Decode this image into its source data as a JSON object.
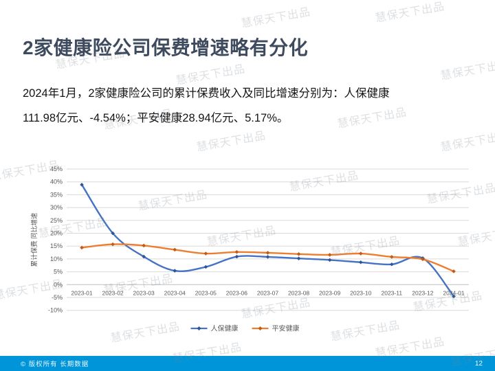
{
  "slide": {
    "title": "2家健康险公司保费增速略有分化",
    "body_line1": "2024年1月，2家健康险公司的累计保费收入及同比增速分别为：人保健康",
    "body_line2": "111.98亿元、-4.54%；平安健康28.94亿元、5.17%。"
  },
  "watermark": {
    "text": "慧保天下出品"
  },
  "footer": {
    "copyright": "© 版权所有 长期数据",
    "page_number": "12",
    "bar_color": "#0095D9"
  },
  "colors": {
    "title": "#3E4A5E",
    "gridline": "#D9D9D9",
    "axis_line": "#BFBFBF",
    "tick_label": "#595959"
  },
  "chart_data": {
    "type": "line",
    "title": "",
    "categories": [
      "2023-01",
      "2023-02",
      "2023-03",
      "2023-04",
      "2023-05",
      "2023-06",
      "2023-07",
      "2023-08",
      "2023-09",
      "2023-10",
      "2023-11",
      "2023-12",
      "2024-01"
    ],
    "series": [
      {
        "name": "人保健康",
        "color": "#4472C4",
        "marker_color": "#2F5597",
        "values": [
          38.9,
          20.0,
          10.9,
          5.4,
          6.9,
          10.9,
          10.8,
          10.2,
          9.6,
          8.7,
          7.9,
          10.3,
          -4.54
        ]
      },
      {
        "name": "平安健康",
        "color": "#ED7D31",
        "marker_color": "#C55A11",
        "values": [
          14.4,
          15.7,
          15.2,
          13.6,
          12.1,
          12.7,
          12.4,
          11.9,
          11.6,
          12.1,
          10.8,
          9.9,
          5.17
        ]
      }
    ],
    "xlabel": "",
    "ylabel": "累计保费 同比增速",
    "ylim": [
      -10,
      45
    ],
    "ytick_step": 5,
    "ytick_format": "percent",
    "grid": true,
    "legend_position": "bottom"
  }
}
